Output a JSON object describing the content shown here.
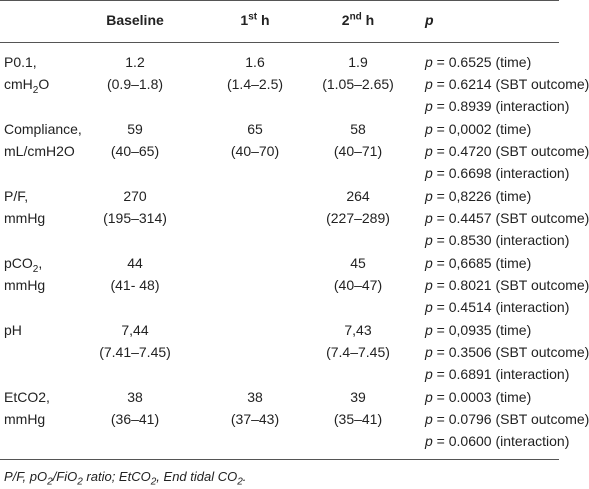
{
  "table": {
    "header": [
      "Baseline",
      [
        "1",
        {
          "sup": "st"
        },
        " h"
      ],
      [
        "2",
        {
          "sup": "nd"
        },
        " h"
      ],
      {
        "i": "p"
      }
    ],
    "rows": [
      {
        "label": [
          "P0.1,",
          [
            "cmH",
            {
              "sub": "2"
            },
            "O"
          ]
        ],
        "cells": [
          [
            "1.2",
            "(0.9–1.8)"
          ],
          [
            "1.6",
            "(1.4–2.5)"
          ],
          [
            "1.9",
            "(1.05–2.65)"
          ]
        ],
        "p": [
          [
            {
              "i": "p"
            },
            " = 0.6525 (time)"
          ],
          [
            {
              "i": "p"
            },
            " = 0.6214 (SBT outcome)"
          ],
          [
            {
              "i": "p"
            },
            " = 0.8939 (interaction)"
          ]
        ]
      },
      {
        "label": [
          "Compliance,",
          "mL/cmH2O"
        ],
        "cells": [
          [
            "59",
            "(40–65)"
          ],
          [
            "65",
            "(40–70)"
          ],
          [
            "58",
            "(40–71)"
          ]
        ],
        "p": [
          [
            {
              "i": "p"
            },
            " = 0,0002 (time)"
          ],
          [
            {
              "i": "p"
            },
            " = 0.4720 (SBT outcome)"
          ],
          [
            {
              "i": "p"
            },
            " = 0.6698 (interaction)"
          ]
        ]
      },
      {
        "label": [
          "P/F,",
          "mmHg"
        ],
        "cells": [
          [
            "270",
            "(195–314)"
          ],
          null,
          [
            "264",
            "(227–289)"
          ]
        ],
        "p": [
          [
            {
              "i": "p"
            },
            " = 0,8226 (time)"
          ],
          [
            {
              "i": "p"
            },
            " = 0.4457 (SBT outcome)"
          ],
          [
            {
              "i": "p"
            },
            " = 0.8530 (interaction)"
          ]
        ]
      },
      {
        "label": [
          [
            "pCO",
            {
              "sub": "2"
            },
            ","
          ],
          "mmHg"
        ],
        "cells": [
          [
            "44",
            "(41- 48)"
          ],
          null,
          [
            "45",
            "(40–47)"
          ]
        ],
        "p": [
          [
            {
              "i": "p"
            },
            " = 0,6685 (time)"
          ],
          [
            {
              "i": "p"
            },
            " = 0.8021 (SBT outcome)"
          ],
          [
            {
              "i": "p"
            },
            " = 0.4514 (interaction)"
          ]
        ]
      },
      {
        "label": [
          "pH"
        ],
        "cells": [
          [
            "7,44",
            "(7.41–7.45)"
          ],
          null,
          [
            "7,43",
            "(7.4–7.45)"
          ]
        ],
        "p": [
          [
            {
              "i": "p"
            },
            " = 0,0935 (time)"
          ],
          [
            {
              "i": "p"
            },
            " = 0.3506 (SBT outcome)"
          ],
          [
            {
              "i": "p"
            },
            " = 0.6891 (interaction)"
          ]
        ]
      },
      {
        "label": [
          "EtCO2,",
          "mmHg"
        ],
        "cells": [
          [
            "38",
            "(36–41)"
          ],
          [
            "38",
            "(37–43)"
          ],
          [
            "39",
            "(35–41)"
          ]
        ],
        "p": [
          [
            {
              "i": "p"
            },
            " = 0.0003 (time)"
          ],
          [
            {
              "i": "p"
            },
            " = 0.0796 (SBT outcome)"
          ],
          [
            {
              "i": "p"
            },
            " = 0.0600 (interaction)"
          ]
        ]
      }
    ],
    "footnote": [
      "P/F, pO",
      {
        "sub": "2"
      },
      "/FiO",
      {
        "sub": "2"
      },
      " ratio; EtCO",
      {
        "sub": "2"
      },
      ", End tidal CO",
      {
        "sub": "2"
      },
      "."
    ]
  }
}
